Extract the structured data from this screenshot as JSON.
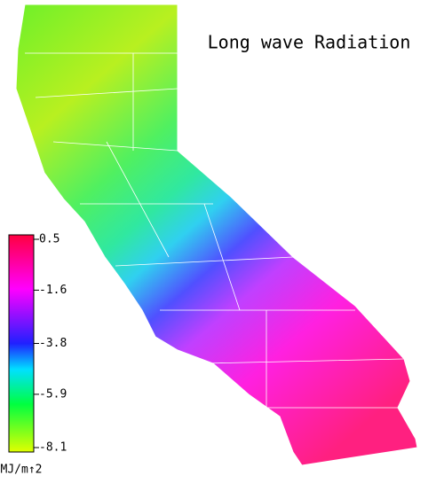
{
  "title": "Long wave Radiation",
  "colorbar": {
    "range": [
      -8.1,
      0.5
    ],
    "ticks": [
      0.5,
      -1.6,
      -3.8,
      -5.9,
      -8.1
    ],
    "unit": "MJ/m↑2"
  }
}
